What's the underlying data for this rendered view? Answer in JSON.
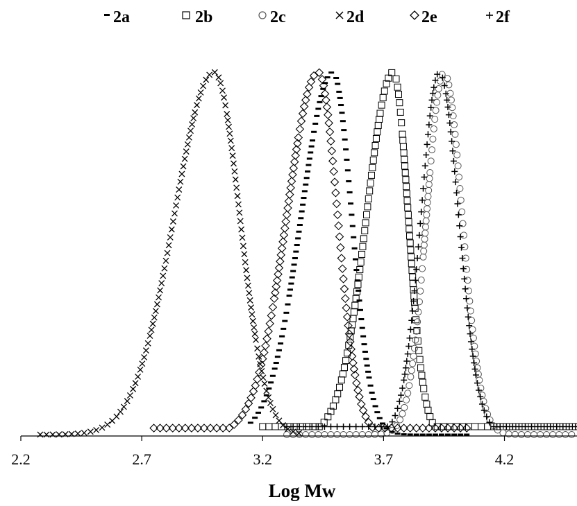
{
  "chart_data": {
    "type": "scatter",
    "title": "",
    "xlabel": "Log Mw",
    "ylabel": "",
    "xlim": [
      2.2,
      4.5
    ],
    "ylim": [
      0,
      1.05
    ],
    "x_ticks": [
      "2.2",
      "2.7",
      "3.2",
      "3.7",
      "4.2"
    ],
    "grid": false,
    "legend_position": "top",
    "series": [
      {
        "name": "2a",
        "marker": "dash",
        "peak": 3.49,
        "sigma_left": 0.13,
        "sigma_right": 0.078,
        "x_range": [
          3.15,
          4.05
        ],
        "baseline": 0.0
      },
      {
        "name": "2b",
        "marker": "square",
        "peak": 3.74,
        "sigma_left": 0.11,
        "sigma_right": 0.062,
        "x_range": [
          3.2,
          4.5
        ],
        "baseline": 0.022
      },
      {
        "name": "2c",
        "marker": "circle",
        "peak": 3.95,
        "sigma_left": 0.072,
        "sigma_right": 0.075,
        "x_range": [
          3.3,
          4.5
        ],
        "baseline": 0.0
      },
      {
        "name": "2d",
        "marker": "x",
        "peak": 3.0,
        "sigma_left": 0.165,
        "sigma_right": 0.105,
        "x_range": [
          2.28,
          3.35
        ],
        "baseline": 0.0
      },
      {
        "name": "2e",
        "marker": "diamond",
        "peak": 3.43,
        "sigma_left": 0.13,
        "sigma_right": 0.08,
        "x_range": [
          2.75,
          4.05
        ],
        "baseline": 0.018
      },
      {
        "name": "2f",
        "marker": "plus",
        "peak": 3.93,
        "sigma_left": 0.075,
        "sigma_right": 0.08,
        "x_range": [
          3.3,
          4.5
        ],
        "baseline": 0.022
      }
    ]
  }
}
